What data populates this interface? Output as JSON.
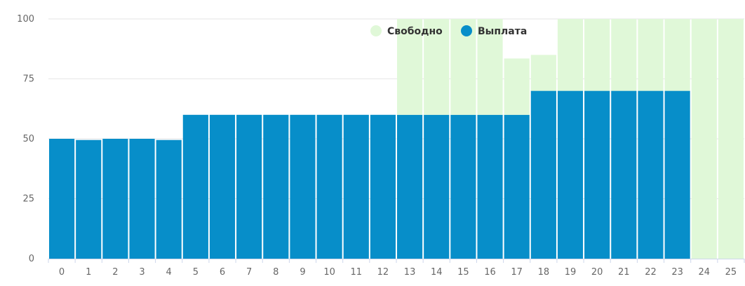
{
  "chart_data": {
    "type": "bar",
    "stacked": true,
    "categories": [
      "0",
      "1",
      "2",
      "3",
      "4",
      "5",
      "6",
      "7",
      "8",
      "9",
      "10",
      "11",
      "12",
      "13",
      "14",
      "15",
      "16",
      "17",
      "18",
      "19",
      "20",
      "21",
      "22",
      "23",
      "24",
      "25"
    ],
    "series": [
      {
        "name": "Выплата",
        "color": "#078ec9",
        "values": [
          50,
          49.5,
          50,
          50,
          49.5,
          60,
          60,
          60,
          60,
          60,
          60,
          60,
          60,
          60,
          60,
          60,
          60,
          60,
          70,
          70,
          70,
          70,
          70,
          70,
          0,
          0
        ]
      },
      {
        "name": "Свободно",
        "color": "#e0f8d8",
        "values": [
          0,
          0,
          0,
          0,
          0,
          0,
          0,
          0,
          0,
          0,
          0,
          0,
          0,
          40,
          40,
          40,
          40,
          23.5,
          15,
          30,
          30,
          30,
          30,
          30,
          100,
          100
        ]
      }
    ],
    "legend_order": [
      "Свободно",
      "Выплата"
    ],
    "y_ticks": [
      "0",
      "25",
      "50",
      "75",
      "100"
    ],
    "ylim": [
      0,
      100
    ],
    "grid": true,
    "legend_position": "top-right"
  }
}
